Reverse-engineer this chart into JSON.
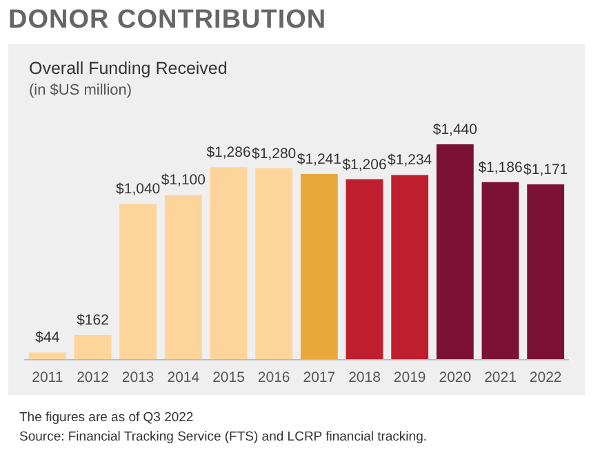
{
  "chart_data": {
    "type": "bar",
    "title": "DONOR CONTRIBUTION",
    "subtitle": "Overall Funding Received",
    "ylabel": "(in $US million)",
    "categories": [
      "2011",
      "2012",
      "2013",
      "2014",
      "2015",
      "2016",
      "2017",
      "2018",
      "2019",
      "2020",
      "2021",
      "2022"
    ],
    "values": [
      44,
      162,
      1040,
      1100,
      1286,
      1280,
      1241,
      1206,
      1234,
      1440,
      1186,
      1171
    ],
    "colors": [
      "#fdd59b",
      "#fdd59b",
      "#fdd59b",
      "#fdd59b",
      "#fdd59b",
      "#fdd59b",
      "#e8a83c",
      "#be1e2d",
      "#be1e2d",
      "#7c1136",
      "#7c1136",
      "#7c1136"
    ],
    "value_labels": [
      "$44",
      "$162",
      "$1,040",
      "$1,100",
      "$1,286",
      "$1,280",
      "$1,241",
      "$1,206",
      "$1,234",
      "$1,440",
      "$1,186",
      "$1,171"
    ],
    "tick_labels": "x",
    "annotations": [
      "The figures are as of Q3 2022",
      "Source: Financial Tracking Service (FTS) and LCRP financial tracking."
    ]
  }
}
